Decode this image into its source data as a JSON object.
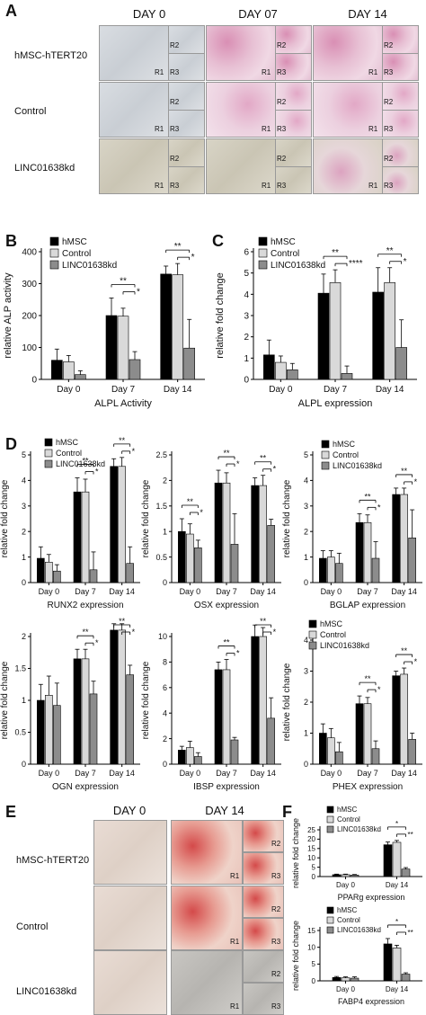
{
  "panelA": {
    "letter": "A",
    "days": [
      "DAY 0",
      "DAY 07",
      "DAY 14"
    ],
    "rows": [
      "hMSC-hTERT20",
      "Control",
      "LINC01638kd"
    ],
    "region_labels": [
      "R1",
      "R2",
      "R3"
    ]
  },
  "panelE": {
    "letter": "E",
    "days": [
      "DAY 0",
      "DAY 14"
    ],
    "rows": [
      "hMSC-hTERT20",
      "Control",
      "LINC01638kd"
    ],
    "region_labels": [
      "R1",
      "R2",
      "R3"
    ]
  },
  "colors": {
    "hMSC": "#000000",
    "Control": "#d9d9d9",
    "LINC01638kd": "#8c8c8c"
  },
  "chart_data": [
    {
      "id": "B",
      "type": "bar",
      "title": "",
      "xlabel": "ALPL Activity",
      "ylabel": "relative ALP activity",
      "categories": [
        "Day 0",
        "Day 7",
        "Day 14"
      ],
      "ylim": [
        0,
        400
      ],
      "yticks": [
        0,
        100,
        200,
        300,
        400
      ],
      "series": [
        {
          "name": "hMSC",
          "values": [
            60,
            200,
            330
          ],
          "err": [
            35,
            55,
            25
          ]
        },
        {
          "name": "Control",
          "values": [
            55,
            198,
            328
          ],
          "err": [
            20,
            25,
            35
          ]
        },
        {
          "name": "LINC01638kd",
          "values": [
            15,
            62,
            98
          ],
          "err": [
            12,
            25,
            90
          ]
        }
      ],
      "sig": [
        {
          "cat": 1,
          "levels": [
            {
              "label": "**"
            },
            {
              "label": "*"
            }
          ]
        },
        {
          "cat": 2,
          "levels": [
            {
              "label": "**"
            },
            {
              "label": "*"
            }
          ]
        }
      ]
    },
    {
      "id": "C",
      "type": "bar",
      "title": "",
      "xlabel": "ALPL expression",
      "ylabel": "relative fold change",
      "categories": [
        "Day 0",
        "Day 7",
        "Day 14"
      ],
      "ylim": [
        0,
        6
      ],
      "yticks": [
        0,
        1,
        2,
        3,
        4,
        5,
        6
      ],
      "series": [
        {
          "name": "hMSC",
          "values": [
            1.15,
            4.05,
            4.1
          ],
          "err": [
            0.7,
            0.9,
            1.15
          ]
        },
        {
          "name": "Control",
          "values": [
            0.8,
            4.55,
            4.55
          ],
          "err": [
            0.3,
            0.6,
            0.7
          ]
        },
        {
          "name": "LINC01638kd",
          "values": [
            0.45,
            0.28,
            1.5
          ],
          "err": [
            0.3,
            0.35,
            1.3
          ]
        }
      ],
      "sig": [
        {
          "cat": 1,
          "levels": [
            {
              "label": "**"
            },
            {
              "label": "****"
            }
          ]
        },
        {
          "cat": 2,
          "levels": [
            {
              "label": "**"
            },
            {
              "label": "*"
            }
          ]
        }
      ]
    },
    {
      "id": "D1",
      "type": "bar",
      "title": "",
      "xlabel": "RUNX2 expression",
      "ylabel": "relative fold change",
      "categories": [
        "Day 0",
        "Day 7",
        "Day 14"
      ],
      "ylim": [
        0,
        5
      ],
      "yticks": [
        0,
        1,
        2,
        3,
        4,
        5
      ],
      "series": [
        {
          "name": "hMSC",
          "values": [
            0.95,
            3.55,
            4.55
          ],
          "err": [
            0.45,
            0.55,
            0.3
          ]
        },
        {
          "name": "Control",
          "values": [
            0.8,
            3.55,
            4.55
          ],
          "err": [
            0.3,
            0.5,
            0.35
          ]
        },
        {
          "name": "LINC01638kd",
          "values": [
            0.45,
            0.5,
            0.75
          ],
          "err": [
            0.25,
            0.7,
            0.65
          ]
        }
      ],
      "sig": [
        {
          "cat": 1,
          "levels": [
            {
              "label": "**"
            },
            {
              "label": "*"
            }
          ]
        },
        {
          "cat": 2,
          "levels": [
            {
              "label": "**"
            },
            {
              "label": "*"
            }
          ]
        }
      ]
    },
    {
      "id": "D2",
      "type": "bar",
      "title": "",
      "xlabel": "OSX expression",
      "ylabel": "relative fold change",
      "categories": [
        "Day 0",
        "Day 7",
        "Day 14"
      ],
      "ylim": [
        0,
        2.5
      ],
      "yticks": [
        0,
        0.5,
        1.0,
        1.5,
        2.0,
        2.5
      ],
      "series": [
        {
          "name": "hMSC",
          "values": [
            1.0,
            1.95,
            1.9
          ],
          "err": [
            0.25,
            0.25,
            0.15
          ]
        },
        {
          "name": "Control",
          "values": [
            0.95,
            1.95,
            1.9
          ],
          "err": [
            0.2,
            0.2,
            0.2
          ]
        },
        {
          "name": "LINC01638kd",
          "values": [
            0.68,
            0.75,
            1.12
          ],
          "err": [
            0.15,
            0.6,
            0.12
          ]
        }
      ],
      "sig": [
        {
          "cat": 0,
          "levels": [
            {
              "label": "**"
            },
            {
              "label": "*"
            }
          ]
        },
        {
          "cat": 1,
          "levels": [
            {
              "label": "**"
            },
            {
              "label": "*"
            }
          ]
        },
        {
          "cat": 2,
          "levels": [
            {
              "label": "**"
            },
            {
              "label": "*"
            }
          ]
        }
      ]
    },
    {
      "id": "D3",
      "type": "bar",
      "title": "",
      "xlabel": "BGLAP expression",
      "ylabel": "relative fold change",
      "categories": [
        "Day 0",
        "Day 7",
        "Day 14"
      ],
      "ylim": [
        0,
        5
      ],
      "yticks": [
        0,
        1,
        2,
        3,
        4,
        5
      ],
      "series": [
        {
          "name": "hMSC",
          "values": [
            0.95,
            2.35,
            3.45
          ],
          "err": [
            0.3,
            0.35,
            0.25
          ]
        },
        {
          "name": "Control",
          "values": [
            1.0,
            2.35,
            3.45
          ],
          "err": [
            0.25,
            0.3,
            0.25
          ]
        },
        {
          "name": "LINC01638kd",
          "values": [
            0.75,
            0.95,
            1.75
          ],
          "err": [
            0.4,
            0.65,
            1.1
          ]
        }
      ],
      "sig": [
        {
          "cat": 1,
          "levels": [
            {
              "label": "**"
            },
            {
              "label": "*"
            }
          ]
        },
        {
          "cat": 2,
          "levels": [
            {
              "label": "**"
            },
            {
              "label": "*"
            }
          ]
        }
      ]
    },
    {
      "id": "D4",
      "type": "bar",
      "title": "",
      "xlabel": "OGN expression",
      "ylabel": "relative fold change",
      "categories": [
        "Day 0",
        "Day 7",
        "Day 14"
      ],
      "ylim": [
        0,
        2.0
      ],
      "yticks": [
        0,
        0.5,
        1.0,
        1.5,
        2.0
      ],
      "series": [
        {
          "name": "hMSC",
          "values": [
            1.0,
            1.65,
            2.1
          ],
          "err": [
            0.25,
            0.15,
            0.1
          ]
        },
        {
          "name": "Control",
          "values": [
            1.08,
            1.65,
            2.1
          ],
          "err": [
            0.3,
            0.15,
            0.1
          ]
        },
        {
          "name": "LINC01638kd",
          "values": [
            0.92,
            1.1,
            1.4
          ],
          "err": [
            0.35,
            0.2,
            0.15
          ]
        }
      ],
      "sig": [
        {
          "cat": 1,
          "levels": [
            {
              "label": "**"
            },
            {
              "label": "*"
            }
          ]
        },
        {
          "cat": 2,
          "levels": [
            {
              "label": "**"
            },
            {
              "label": "*"
            }
          ]
        }
      ]
    },
    {
      "id": "D5",
      "type": "bar",
      "title": "",
      "xlabel": "IBSP expression",
      "ylabel": "relative fold change",
      "categories": [
        "Day 0",
        "Day 7",
        "Day 14"
      ],
      "ylim": [
        0,
        10
      ],
      "yticks": [
        0,
        2,
        4,
        6,
        8,
        10
      ],
      "series": [
        {
          "name": "hMSC",
          "values": [
            1.1,
            7.4,
            10.0
          ],
          "err": [
            0.3,
            0.6,
            0.9
          ]
        },
        {
          "name": "Control",
          "values": [
            1.3,
            7.4,
            10.0
          ],
          "err": [
            0.5,
            0.8,
            0.7
          ]
        },
        {
          "name": "LINC01638kd",
          "values": [
            0.6,
            1.9,
            3.6
          ],
          "err": [
            0.3,
            0.2,
            1.6
          ]
        }
      ],
      "sig": [
        {
          "cat": 1,
          "levels": [
            {
              "label": "**"
            },
            {
              "label": "*"
            }
          ]
        },
        {
          "cat": 2,
          "levels": [
            {
              "label": "**"
            },
            {
              "label": "*"
            }
          ]
        }
      ]
    },
    {
      "id": "D6",
      "type": "bar",
      "title": "",
      "xlabel": "PHEX expression",
      "ylabel": "relative fold change",
      "categories": [
        "Day 0",
        "Day 7",
        "Day 14"
      ],
      "ylim": [
        0,
        4
      ],
      "yticks": [
        0,
        1,
        2,
        3,
        4
      ],
      "series": [
        {
          "name": "hMSC",
          "values": [
            1.0,
            1.95,
            2.85
          ],
          "err": [
            0.3,
            0.25,
            0.15
          ]
        },
        {
          "name": "Control",
          "values": [
            0.85,
            1.95,
            2.9
          ],
          "err": [
            0.3,
            0.2,
            0.2
          ]
        },
        {
          "name": "LINC01638kd",
          "values": [
            0.4,
            0.5,
            0.8
          ],
          "err": [
            0.3,
            0.25,
            0.2
          ]
        }
      ],
      "sig": [
        {
          "cat": 1,
          "levels": [
            {
              "label": "**"
            },
            {
              "label": "*"
            }
          ]
        },
        {
          "cat": 2,
          "levels": [
            {
              "label": "**"
            },
            {
              "label": "*"
            }
          ]
        }
      ]
    },
    {
      "id": "F1",
      "type": "bar",
      "title": "",
      "xlabel": "PPARg expression",
      "ylabel": "relative fold change",
      "categories": [
        "Day 0",
        "Day 14"
      ],
      "ylim": [
        0,
        25
      ],
      "yticks": [
        0,
        5,
        10,
        15,
        20,
        25
      ],
      "series": [
        {
          "name": "hMSC",
          "values": [
            1.0,
            17.0
          ],
          "err": [
            0.3,
            1.5
          ]
        },
        {
          "name": "Control",
          "values": [
            1.0,
            18.3
          ],
          "err": [
            0.3,
            1.0
          ]
        },
        {
          "name": "LINC01638kd",
          "values": [
            0.8,
            4.0
          ],
          "err": [
            0.3,
            0.8
          ]
        }
      ],
      "sig": [
        {
          "cat": 1,
          "levels": [
            {
              "label": "*"
            },
            {
              "label": "**"
            }
          ]
        }
      ]
    },
    {
      "id": "F2",
      "type": "bar",
      "title": "",
      "xlabel": "FABP4 expression",
      "ylabel": "relative fold change",
      "categories": [
        "Day 0",
        "Day 14"
      ],
      "ylim": [
        0,
        15
      ],
      "yticks": [
        0,
        5,
        10,
        15
      ],
      "series": [
        {
          "name": "hMSC",
          "values": [
            1.0,
            11.0
          ],
          "err": [
            0.3,
            1.6
          ]
        },
        {
          "name": "Control",
          "values": [
            0.9,
            9.8
          ],
          "err": [
            0.3,
            0.8
          ]
        },
        {
          "name": "LINC01638kd",
          "values": [
            0.8,
            2.0
          ],
          "err": [
            0.4,
            0.4
          ]
        }
      ],
      "sig": [
        {
          "cat": 1,
          "levels": [
            {
              "label": "*"
            },
            {
              "label": "**"
            }
          ]
        }
      ]
    }
  ]
}
